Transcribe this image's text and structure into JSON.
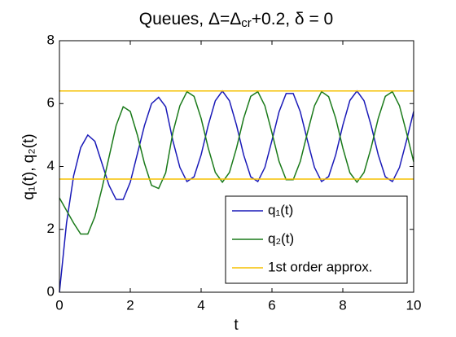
{
  "chart_data": {
    "type": "line",
    "title": [
      "Queues, Δ=Δ",
      "cr",
      "+0.2, δ = 0"
    ],
    "xlabel": "t",
    "ylabel": "q₁(t), q₂(t)",
    "x": [
      0,
      0.2,
      0.4,
      0.6,
      0.8,
      1.0,
      1.2,
      1.4,
      1.6,
      1.8,
      2.0,
      2.2,
      2.4,
      2.6,
      2.8,
      3.0,
      3.2,
      3.4,
      3.6,
      3.8,
      4.0,
      4.2,
      4.4,
      4.6,
      4.8,
      5.0,
      5.2,
      5.4,
      5.6,
      5.8,
      6.0,
      6.2,
      6.4,
      6.6,
      6.8,
      7.0,
      7.2,
      7.4,
      7.6,
      7.8,
      8.0,
      8.2,
      8.4,
      8.6,
      8.8,
      9.0,
      9.2,
      9.4,
      9.6,
      9.8,
      10.0
    ],
    "series": [
      {
        "name": "q₁(t)",
        "color": "#1a1ab8",
        "values": [
          0,
          2.2,
          3.7,
          4.6,
          5.0,
          4.8,
          4.1,
          3.4,
          2.95,
          2.95,
          3.5,
          4.4,
          5.3,
          6.0,
          6.2,
          5.9,
          4.83,
          3.97,
          3.52,
          3.67,
          4.37,
          5.31,
          6.09,
          6.4,
          6.09,
          5.31,
          4.37,
          3.67,
          3.52,
          3.97,
          4.83,
          5.74,
          6.32,
          6.32,
          5.74,
          4.83,
          3.97,
          3.52,
          3.68,
          4.37,
          5.31,
          6.1,
          6.4,
          6.09,
          5.3,
          4.37,
          3.67,
          3.52,
          3.97,
          4.83,
          5.75
        ]
      },
      {
        "name": "q₂(t)",
        "color": "#1a7a1a",
        "values": [
          3.0,
          2.6,
          2.2,
          1.85,
          1.85,
          2.4,
          3.3,
          4.3,
          5.3,
          5.9,
          5.75,
          5.0,
          4.1,
          3.4,
          3.3,
          3.8,
          5.07,
          5.93,
          6.38,
          6.23,
          5.53,
          4.59,
          3.81,
          3.5,
          3.81,
          4.59,
          5.53,
          6.23,
          6.38,
          5.93,
          5.07,
          4.16,
          3.58,
          3.58,
          4.16,
          5.07,
          5.93,
          6.38,
          6.22,
          5.53,
          4.59,
          3.8,
          3.5,
          3.81,
          4.6,
          5.53,
          6.23,
          6.38,
          5.93,
          5.07,
          4.15
        ]
      }
    ],
    "hlines": {
      "name": "1st order approx.",
      "color": "#f5c000",
      "values": [
        6.4,
        3.6
      ]
    },
    "xlim": [
      0,
      10
    ],
    "xticks": [
      0,
      2,
      4,
      6,
      8,
      10
    ],
    "ylim": [
      0,
      8
    ],
    "yticks": [
      0,
      2,
      4,
      6,
      8
    ],
    "legend": "lower right"
  }
}
